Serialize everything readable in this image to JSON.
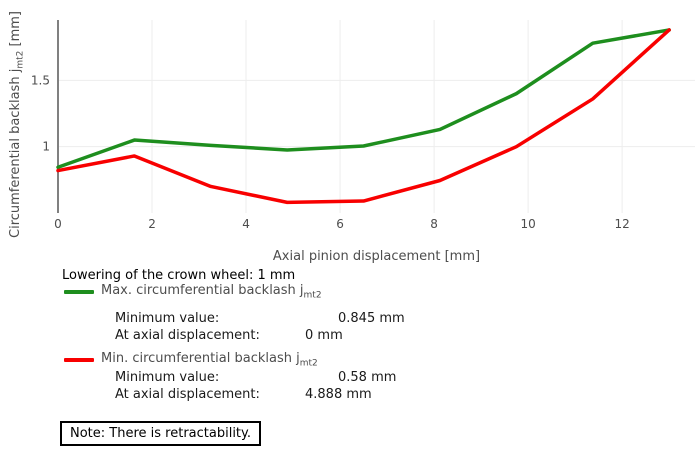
{
  "chart": {
    "x_axis_title": "Axial pinion displacement [mm]",
    "y_axis_title": {
      "prefix": "Circumferential backlash j",
      "sub": "mt2",
      "suffix": " [mm]"
    }
  },
  "chart_data": {
    "type": "line",
    "xlabel": "Axial pinion displacement [mm]",
    "ylabel": "Circumferential backlash jmt2 [mm]",
    "x": [
      0,
      1.625,
      3.25,
      4.875,
      6.5,
      8.125,
      9.75,
      11.375,
      13
    ],
    "series": [
      {
        "name": "Max. circumferential backlash jmt2",
        "color": "#1e8e1e",
        "values": [
          0.845,
          1.05,
          1.01,
          0.975,
          1.005,
          1.13,
          1.4,
          1.78,
          1.88
        ]
      },
      {
        "name": "Min. circumferential backlash jmt2",
        "color": "#f80000",
        "values": [
          0.82,
          0.93,
          0.7,
          0.58,
          0.59,
          0.745,
          1.0,
          1.36,
          1.88
        ]
      }
    ],
    "xticks": [
      {
        "v": 0,
        "label": "0"
      },
      {
        "v": 2,
        "label": "2"
      },
      {
        "v": 4,
        "label": "4"
      },
      {
        "v": 6,
        "label": "6"
      },
      {
        "v": 8,
        "label": "8"
      },
      {
        "v": 10,
        "label": "10"
      },
      {
        "v": 12,
        "label": "12"
      }
    ],
    "yticks": [
      {
        "v": 1,
        "label": "1"
      },
      {
        "v": 1.5,
        "label": "1.5"
      }
    ],
    "xlim": [
      0,
      13.55
    ],
    "ylim": [
      0.5,
      1.955
    ],
    "grid": true,
    "grid_color": "#ededed",
    "axis_color": "#808080",
    "legend_position": "below"
  },
  "legend": {
    "header": "Lowering of the crown wheel: 1 mm",
    "series": [
      {
        "label_prefix": "Max. circumferential backlash j",
        "label_sub": "mt2",
        "color": "#1e8e1e",
        "rows": [
          {
            "label": "Minimum value:",
            "value": "0.845 mm"
          },
          {
            "label": "At axial displacement:",
            "value": "0 mm"
          }
        ]
      },
      {
        "label_prefix": "Min. circumferential backlash j",
        "label_sub": "mt2",
        "color": "#f80000",
        "rows": [
          {
            "label": "Minimum value:",
            "value": "0.58 mm"
          },
          {
            "label": "At axial displacement:",
            "value": "4.888 mm"
          }
        ]
      }
    ]
  },
  "note": "Note: There is retractability."
}
